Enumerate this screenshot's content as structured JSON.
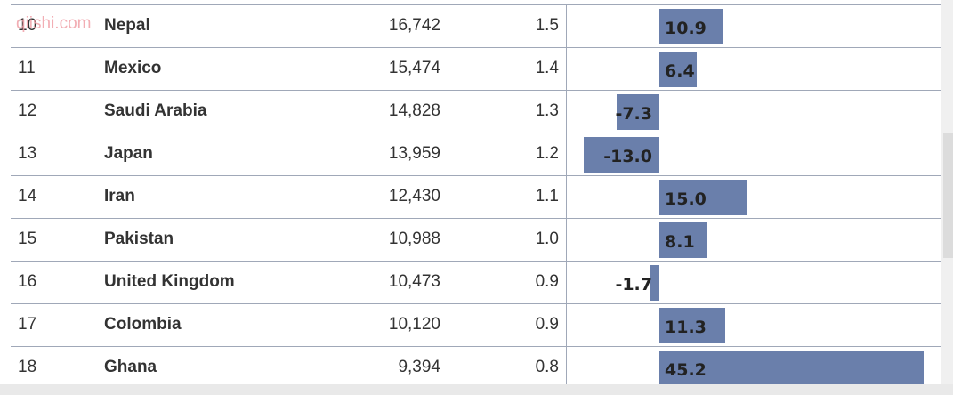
{
  "watermark": "qiishi.com",
  "table": {
    "rows": [
      [
        "10",
        "Nepal",
        "16,742",
        "1.5"
      ],
      [
        "11",
        "Mexico",
        "15,474",
        "1.4"
      ],
      [
        "12",
        "Saudi Arabia",
        "14,828",
        "1.3"
      ],
      [
        "13",
        "Japan",
        "13,959",
        "1.2"
      ],
      [
        "14",
        "Iran",
        "12,430",
        "1.1"
      ],
      [
        "15",
        "Pakistan",
        "10,988",
        "1.0"
      ],
      [
        "16",
        "United Kingdom",
        "10,473",
        "0.9"
      ],
      [
        "17",
        "Colombia",
        "10,120",
        "0.9"
      ],
      [
        "18",
        "Ghana",
        "9,394",
        "0.8"
      ]
    ],
    "growth": {
      "values": [
        10.9,
        6.4,
        -7.3,
        -13,
        15,
        8.1,
        -1.7,
        11.3,
        45.2
      ],
      "value_labels": [
        "10.9",
        "6.4",
        "-7.3",
        "-13.0",
        "15.0",
        "8.1",
        "-1.7",
        "11.3",
        "45.2"
      ],
      "color": "#6a7fab"
    }
  }
}
